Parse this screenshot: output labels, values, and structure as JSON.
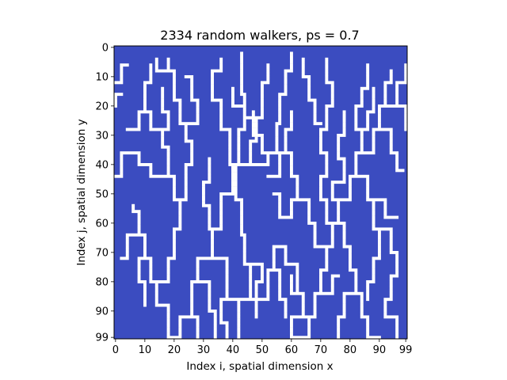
{
  "chart_data": {
    "type": "heatmap",
    "title": "2334 random walkers, ps = 0.7",
    "xlabel": "Index i, spatial dimension x",
    "ylabel": "Index j, spatial dimension y",
    "xlim": [
      0,
      99
    ],
    "ylim": [
      99,
      0
    ],
    "x_ticks": [
      0,
      10,
      20,
      30,
      40,
      50,
      60,
      70,
      80,
      90,
      99
    ],
    "y_ticks": [
      0,
      10,
      20,
      30,
      40,
      50,
      60,
      70,
      80,
      90,
      99
    ],
    "grid": false,
    "colors": {
      "background": "#3b4cc0",
      "occupied": "#ffffff"
    },
    "occupied_segments": [
      [
        [
          42,
          99
        ],
        [
          42,
          86
        ],
        [
          38,
          86
        ],
        [
          38,
          72
        ],
        [
          33,
          72
        ],
        [
          33,
          62
        ],
        [
          36,
          62
        ],
        [
          36,
          50
        ],
        [
          40,
          50
        ],
        [
          40,
          40
        ],
        [
          39,
          40
        ],
        [
          39,
          28
        ],
        [
          36,
          28
        ],
        [
          36,
          18
        ],
        [
          33,
          18
        ],
        [
          33,
          8
        ],
        [
          36,
          8
        ],
        [
          36,
          4
        ]
      ],
      [
        [
          42,
          86
        ],
        [
          46,
          86
        ],
        [
          46,
          74
        ],
        [
          44,
          74
        ],
        [
          44,
          64
        ],
        [
          43,
          64
        ],
        [
          43,
          52
        ],
        [
          41,
          52
        ],
        [
          41,
          40
        ],
        [
          42,
          40
        ],
        [
          42,
          28
        ],
        [
          44,
          28
        ],
        [
          44,
          16
        ],
        [
          43,
          16
        ],
        [
          43,
          8
        ],
        [
          43,
          2
        ]
      ],
      [
        [
          40,
          40
        ],
        [
          46,
          40
        ],
        [
          46,
          32
        ],
        [
          48,
          32
        ],
        [
          48,
          24
        ],
        [
          50,
          24
        ],
        [
          50,
          12
        ],
        [
          52,
          12
        ],
        [
          52,
          6
        ]
      ],
      [
        [
          46,
          40
        ],
        [
          52,
          40
        ],
        [
          52,
          36
        ],
        [
          55,
          36
        ],
        [
          55,
          26
        ],
        [
          56,
          26
        ],
        [
          56,
          16
        ],
        [
          58,
          16
        ],
        [
          58,
          8
        ]
      ],
      [
        [
          48,
          24
        ],
        [
          44,
          24
        ],
        [
          44,
          20
        ],
        [
          40,
          20
        ],
        [
          40,
          14
        ]
      ],
      [
        [
          52,
          36
        ],
        [
          50,
          36
        ],
        [
          50,
          30
        ],
        [
          47,
          30
        ],
        [
          47,
          22
        ]
      ],
      [
        [
          46,
          86
        ],
        [
          52,
          86
        ],
        [
          52,
          76
        ],
        [
          54,
          76
        ],
        [
          54,
          68
        ],
        [
          58,
          68
        ],
        [
          58,
          74
        ],
        [
          62,
          74
        ],
        [
          62,
          84
        ],
        [
          64,
          84
        ],
        [
          64,
          92
        ],
        [
          60,
          92
        ],
        [
          60,
          99
        ]
      ],
      [
        [
          54,
          76
        ],
        [
          56,
          76
        ],
        [
          56,
          86
        ],
        [
          58,
          86
        ],
        [
          58,
          92
        ]
      ],
      [
        [
          44,
          74
        ],
        [
          50,
          74
        ],
        [
          50,
          80
        ],
        [
          48,
          80
        ],
        [
          48,
          92
        ]
      ],
      [
        [
          33,
          72
        ],
        [
          28,
          72
        ],
        [
          28,
          80
        ],
        [
          26,
          80
        ],
        [
          26,
          92
        ],
        [
          22,
          92
        ],
        [
          22,
          99
        ]
      ],
      [
        [
          28,
          80
        ],
        [
          32,
          80
        ],
        [
          32,
          90
        ],
        [
          34,
          90
        ],
        [
          34,
          99
        ]
      ],
      [
        [
          38,
          86
        ],
        [
          36,
          86
        ],
        [
          36,
          94
        ],
        [
          38,
          94
        ],
        [
          38,
          99
        ]
      ],
      [
        [
          36,
          62
        ],
        [
          32,
          62
        ],
        [
          32,
          54
        ],
        [
          30,
          54
        ],
        [
          30,
          46
        ],
        [
          32,
          46
        ],
        [
          32,
          38
        ]
      ],
      [
        [
          22,
          99
        ],
        [
          18,
          99
        ],
        [
          18,
          88
        ],
        [
          14,
          88
        ],
        [
          14,
          80
        ],
        [
          12,
          80
        ],
        [
          12,
          72
        ],
        [
          10,
          72
        ],
        [
          10,
          64
        ],
        [
          8,
          64
        ],
        [
          8,
          56
        ],
        [
          6,
          56
        ],
        [
          6,
          54
        ]
      ],
      [
        [
          14,
          80
        ],
        [
          18,
          80
        ],
        [
          18,
          72
        ],
        [
          20,
          72
        ],
        [
          20,
          62
        ],
        [
          22,
          62
        ],
        [
          22,
          52
        ],
        [
          20,
          52
        ],
        [
          20,
          44
        ],
        [
          18,
          44
        ],
        [
          18,
          34
        ],
        [
          16,
          34
        ],
        [
          16,
          28
        ],
        [
          12,
          28
        ],
        [
          12,
          22
        ],
        [
          10,
          22
        ],
        [
          10,
          12
        ],
        [
          12,
          12
        ],
        [
          12,
          6
        ]
      ],
      [
        [
          20,
          44
        ],
        [
          12,
          44
        ],
        [
          12,
          40
        ],
        [
          8,
          40
        ],
        [
          8,
          36
        ],
        [
          6,
          36
        ]
      ],
      [
        [
          22,
          52
        ],
        [
          24,
          52
        ],
        [
          24,
          40
        ],
        [
          26,
          40
        ],
        [
          26,
          32
        ],
        [
          24,
          32
        ],
        [
          24,
          26
        ],
        [
          22,
          26
        ],
        [
          22,
          18
        ],
        [
          20,
          18
        ],
        [
          20,
          8
        ],
        [
          18,
          8
        ],
        [
          18,
          4
        ]
      ],
      [
        [
          24,
          26
        ],
        [
          28,
          26
        ],
        [
          28,
          18
        ],
        [
          26,
          18
        ],
        [
          26,
          10
        ],
        [
          24,
          10
        ]
      ],
      [
        [
          16,
          28
        ],
        [
          18,
          28
        ],
        [
          18,
          22
        ],
        [
          16,
          22
        ],
        [
          16,
          14
        ]
      ],
      [
        [
          6,
          36
        ],
        [
          2,
          36
        ],
        [
          2,
          44
        ],
        [
          0,
          44
        ]
      ],
      [
        [
          0,
          12
        ],
        [
          2,
          12
        ],
        [
          2,
          6
        ],
        [
          4,
          6
        ]
      ],
      [
        [
          0,
          20
        ],
        [
          0,
          16
        ],
        [
          2,
          16
        ]
      ],
      [
        [
          8,
          64
        ],
        [
          4,
          64
        ],
        [
          4,
          72
        ],
        [
          2,
          72
        ]
      ],
      [
        [
          10,
          72
        ],
        [
          8,
          72
        ],
        [
          8,
          80
        ],
        [
          10,
          80
        ],
        [
          10,
          88
        ]
      ],
      [
        [
          26,
          92
        ],
        [
          28,
          92
        ],
        [
          28,
          99
        ]
      ],
      [
        [
          60,
          99
        ],
        [
          66,
          99
        ],
        [
          66,
          92
        ],
        [
          68,
          92
        ],
        [
          68,
          84
        ],
        [
          70,
          84
        ],
        [
          70,
          76
        ],
        [
          72,
          76
        ],
        [
          72,
          68
        ],
        [
          74,
          68
        ],
        [
          74,
          60
        ],
        [
          72,
          60
        ],
        [
          72,
          52
        ],
        [
          70,
          52
        ],
        [
          70,
          44
        ],
        [
          72,
          44
        ],
        [
          72,
          36
        ],
        [
          70,
          36
        ],
        [
          70,
          28
        ],
        [
          72,
          28
        ],
        [
          72,
          20
        ],
        [
          74,
          20
        ],
        [
          74,
          12
        ],
        [
          72,
          12
        ],
        [
          72,
          4
        ]
      ],
      [
        [
          72,
          68
        ],
        [
          68,
          68
        ],
        [
          68,
          60
        ],
        [
          66,
          60
        ],
        [
          66,
          52
        ],
        [
          62,
          52
        ],
        [
          62,
          44
        ],
        [
          60,
          44
        ],
        [
          60,
          36
        ],
        [
          58,
          36
        ],
        [
          58,
          28
        ],
        [
          60,
          28
        ],
        [
          60,
          22
        ]
      ],
      [
        [
          66,
          52
        ],
        [
          60,
          52
        ],
        [
          60,
          58
        ],
        [
          56,
          58
        ],
        [
          56,
          50
        ],
        [
          54,
          50
        ]
      ],
      [
        [
          74,
          60
        ],
        [
          78,
          60
        ],
        [
          78,
          68
        ],
        [
          80,
          68
        ],
        [
          80,
          76
        ],
        [
          82,
          76
        ],
        [
          82,
          84
        ],
        [
          84,
          84
        ],
        [
          84,
          92
        ],
        [
          86,
          92
        ],
        [
          86,
          99
        ],
        [
          90,
          99
        ]
      ],
      [
        [
          82,
          84
        ],
        [
          78,
          84
        ],
        [
          78,
          92
        ],
        [
          76,
          92
        ],
        [
          76,
          99
        ]
      ],
      [
        [
          74,
          60
        ],
        [
          76,
          60
        ],
        [
          76,
          52
        ],
        [
          80,
          52
        ],
        [
          80,
          44
        ],
        [
          82,
          44
        ],
        [
          82,
          36
        ],
        [
          84,
          36
        ],
        [
          84,
          28
        ],
        [
          82,
          28
        ],
        [
          82,
          20
        ],
        [
          84,
          20
        ],
        [
          84,
          14
        ],
        [
          86,
          14
        ],
        [
          86,
          6
        ]
      ],
      [
        [
          82,
          36
        ],
        [
          88,
          36
        ],
        [
          88,
          28
        ],
        [
          90,
          28
        ],
        [
          90,
          20
        ],
        [
          92,
          20
        ],
        [
          92,
          12
        ],
        [
          94,
          12
        ],
        [
          94,
          8
        ]
      ],
      [
        [
          84,
          28
        ],
        [
          86,
          28
        ],
        [
          86,
          22
        ],
        [
          88,
          22
        ],
        [
          88,
          14
        ]
      ],
      [
        [
          76,
          52
        ],
        [
          74,
          52
        ],
        [
          74,
          46
        ],
        [
          78,
          46
        ],
        [
          78,
          38
        ],
        [
          76,
          38
        ],
        [
          76,
          30
        ],
        [
          78,
          30
        ],
        [
          78,
          22
        ]
      ],
      [
        [
          80,
          44
        ],
        [
          86,
          44
        ],
        [
          86,
          52
        ],
        [
          88,
          52
        ],
        [
          88,
          62
        ],
        [
          90,
          62
        ],
        [
          90,
          72
        ],
        [
          88,
          72
        ],
        [
          88,
          80
        ],
        [
          86,
          80
        ],
        [
          86,
          86
        ]
      ],
      [
        [
          88,
          62
        ],
        [
          94,
          62
        ],
        [
          94,
          70
        ],
        [
          96,
          70
        ],
        [
          96,
          78
        ],
        [
          94,
          78
        ]
      ],
      [
        [
          90,
          20
        ],
        [
          96,
          20
        ],
        [
          96,
          12
        ],
        [
          99,
          12
        ],
        [
          99,
          6
        ]
      ],
      [
        [
          96,
          20
        ],
        [
          99,
          20
        ],
        [
          99,
          28
        ]
      ],
      [
        [
          90,
          28
        ],
        [
          94,
          28
        ],
        [
          94,
          36
        ],
        [
          96,
          36
        ],
        [
          96,
          42
        ],
        [
          98,
          42
        ]
      ],
      [
        [
          86,
          52
        ],
        [
          92,
          52
        ],
        [
          92,
          58
        ],
        [
          96,
          58
        ]
      ],
      [
        [
          70,
          84
        ],
        [
          74,
          84
        ],
        [
          74,
          78
        ],
        [
          76,
          78
        ]
      ],
      [
        [
          58,
          36
        ],
        [
          56,
          36
        ],
        [
          56,
          44
        ],
        [
          52,
          44
        ]
      ],
      [
        [
          94,
          78
        ],
        [
          94,
          86
        ],
        [
          92,
          86
        ],
        [
          92,
          92
        ],
        [
          96,
          92
        ],
        [
          96,
          99
        ]
      ],
      [
        [
          66,
          92
        ],
        [
          62,
          92
        ]
      ],
      [
        [
          12,
          22
        ],
        [
          8,
          22
        ],
        [
          8,
          28
        ],
        [
          4,
          28
        ]
      ],
      [
        [
          18,
          8
        ],
        [
          14,
          8
        ],
        [
          14,
          4
        ]
      ],
      [
        [
          62,
          84
        ],
        [
          60,
          84
        ],
        [
          60,
          78
        ]
      ],
      [
        [
          64,
          4
        ],
        [
          64,
          10
        ],
        [
          66,
          10
        ],
        [
          66,
          18
        ],
        [
          68,
          18
        ],
        [
          68,
          26
        ],
        [
          70,
          26
        ]
      ],
      [
        [
          58,
          8
        ],
        [
          60,
          8
        ],
        [
          60,
          2
        ]
      ]
    ]
  }
}
